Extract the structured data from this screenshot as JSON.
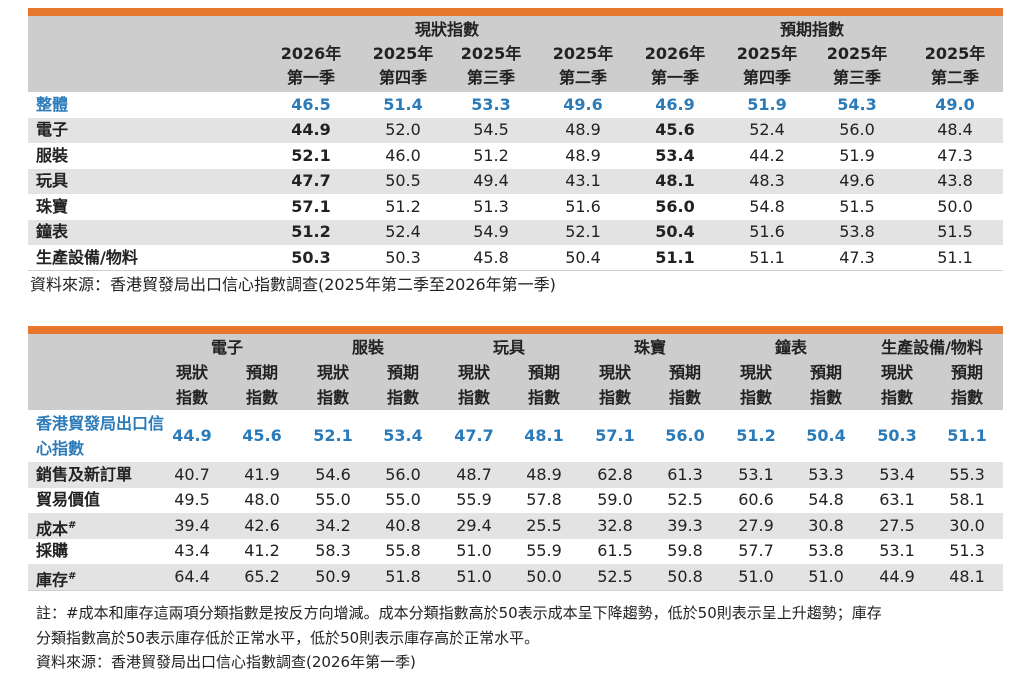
{
  "table1": {
    "groups": [
      "現狀指數",
      "預期指數"
    ],
    "columns": [
      [
        "2026年",
        "第一季"
      ],
      [
        "2025年",
        "第四季"
      ],
      [
        "2025年",
        "第三季"
      ],
      [
        "2025年",
        "第二季"
      ],
      [
        "2026年",
        "第一季"
      ],
      [
        "2025年",
        "第四季"
      ],
      [
        "2025年",
        "第三季"
      ],
      [
        "2025年",
        "第二季"
      ]
    ],
    "rows": [
      {
        "label": "整體",
        "values": [
          "46.5",
          "51.4",
          "53.3",
          "49.6",
          "46.9",
          "51.9",
          "54.3",
          "49.0"
        ]
      },
      {
        "label": "電子",
        "values": [
          "44.9",
          "52.0",
          "54.5",
          "48.9",
          "45.6",
          "52.4",
          "56.0",
          "48.4"
        ]
      },
      {
        "label": "服裝",
        "values": [
          "52.1",
          "46.0",
          "51.2",
          "48.9",
          "53.4",
          "44.2",
          "51.9",
          "47.3"
        ]
      },
      {
        "label": "玩具",
        "values": [
          "47.7",
          "50.5",
          "49.4",
          "43.1",
          "48.1",
          "48.3",
          "49.6",
          "43.8"
        ]
      },
      {
        "label": "珠寶",
        "values": [
          "57.1",
          "51.2",
          "51.3",
          "51.6",
          "56.0",
          "54.8",
          "51.5",
          "50.0"
        ]
      },
      {
        "label": "鐘表",
        "values": [
          "51.2",
          "52.4",
          "54.9",
          "52.1",
          "50.4",
          "51.6",
          "53.8",
          "51.5"
        ]
      },
      {
        "label": "生產設備/物料",
        "values": [
          "50.3",
          "50.3",
          "45.8",
          "50.4",
          "51.1",
          "51.1",
          "47.3",
          "51.1"
        ]
      }
    ],
    "source": "資料來源：香港貿發局出口信心指數調查(2025年第二季至2026年第一季)"
  },
  "table2": {
    "groups": [
      "電子",
      "服裝",
      "玩具",
      "珠寶",
      "鐘表",
      "生產設備/物料"
    ],
    "subcolumns": [
      [
        "現狀",
        "指數"
      ],
      [
        "預期",
        "指數"
      ]
    ],
    "rows": [
      {
        "label": "香港貿發局出口信心指數",
        "values": [
          "44.9",
          "45.6",
          "52.1",
          "53.4",
          "47.7",
          "48.1",
          "57.1",
          "56.0",
          "51.2",
          "50.4",
          "50.3",
          "51.1"
        ]
      },
      {
        "label": "銷售及新訂單",
        "values": [
          "40.7",
          "41.9",
          "54.6",
          "56.0",
          "48.7",
          "48.9",
          "62.8",
          "61.3",
          "53.1",
          "53.3",
          "53.4",
          "55.3"
        ]
      },
      {
        "label": "貿易價值",
        "values": [
          "49.5",
          "48.0",
          "55.0",
          "55.0",
          "55.9",
          "57.8",
          "59.0",
          "52.5",
          "60.6",
          "54.8",
          "63.1",
          "58.1"
        ]
      },
      {
        "label": "成本",
        "label_sup": "#",
        "values": [
          "39.4",
          "42.6",
          "34.2",
          "40.8",
          "29.4",
          "25.5",
          "32.8",
          "39.3",
          "27.9",
          "30.8",
          "27.5",
          "30.0"
        ]
      },
      {
        "label": "採購",
        "values": [
          "43.4",
          "41.2",
          "58.3",
          "55.8",
          "51.0",
          "55.9",
          "61.5",
          "59.8",
          "57.7",
          "53.8",
          "53.1",
          "51.3"
        ]
      },
      {
        "label": "庫存",
        "label_sup": "#",
        "values": [
          "64.4",
          "65.2",
          "50.9",
          "51.8",
          "51.0",
          "50.0",
          "52.5",
          "50.8",
          "51.0",
          "51.0",
          "44.9",
          "48.1"
        ]
      }
    ],
    "note": [
      "註：#成本和庫存這兩項分類指數是按反方向增減。成本分類指數高於50表示成本呈下降趨勢，低於50則表示呈上升趨勢；庫存",
      "分類指數高於50表示庫存低於正常水平，低於50則表示庫存高於正常水平。"
    ],
    "source": "資料來源：香港貿發局出口信心指數調查(2026年第一季)"
  }
}
